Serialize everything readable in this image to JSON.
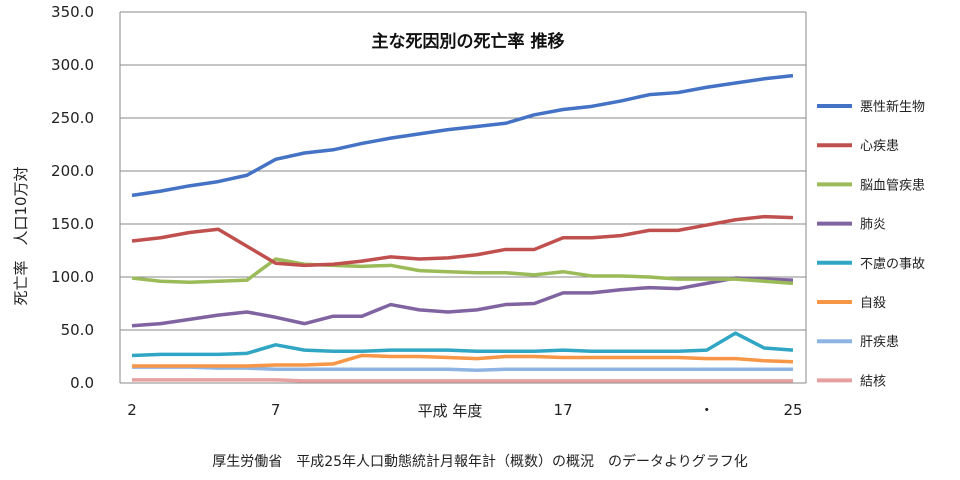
{
  "chart_data": {
    "type": "line",
    "title": "主な死因別の死亡率 推移",
    "xlabel": "平成 年度",
    "ylabel": "死亡率　人口10万対",
    "source_note": "厚生労働省　平成25年人口動態統計月報年計（概数）の概況　のデータよりグラフ化",
    "xlim": [
      2,
      25
    ],
    "ylim": [
      0,
      350
    ],
    "y_ticks": [
      "0.0",
      "50.0",
      "100.0",
      "150.0",
      "200.0",
      "250.0",
      "300.0",
      "350.0"
    ],
    "x_tick_labels": [
      {
        "x": 2,
        "label": "2"
      },
      {
        "x": 7,
        "label": "7"
      },
      {
        "x": 17,
        "label": "17"
      },
      {
        "x": 22,
        "label": "・"
      },
      {
        "x": 25,
        "label": "25"
      }
    ],
    "grid": "horizontal",
    "legend_position": "right",
    "x": [
      2,
      3,
      4,
      5,
      6,
      7,
      8,
      9,
      10,
      11,
      12,
      13,
      14,
      15,
      16,
      17,
      18,
      19,
      20,
      21,
      22,
      23,
      24,
      25
    ],
    "series": [
      {
        "name": "悪性新生物",
        "color": "#4472c4",
        "values": [
          177,
          181,
          186,
          190,
          196,
          211,
          217,
          220,
          226,
          231,
          235,
          239,
          242,
          245,
          253,
          258,
          261,
          266,
          272,
          274,
          279,
          283,
          287,
          290
        ]
      },
      {
        "name": "心疾患",
        "color": "#c0504d",
        "values": [
          134,
          137,
          142,
          145,
          129,
          113,
          111,
          112,
          115,
          119,
          117,
          118,
          121,
          126,
          126,
          137,
          137,
          139,
          144,
          144,
          149,
          154,
          157,
          156
        ]
      },
      {
        "name": "脳血管疾患",
        "color": "#9bbb59",
        "values": [
          99,
          96,
          95,
          96,
          97,
          117,
          112,
          111,
          110,
          111,
          106,
          105,
          104,
          104,
          102,
          105,
          101,
          101,
          100,
          98,
          98,
          98,
          96,
          94
        ]
      },
      {
        "name": "肺炎",
        "color": "#8064a2",
        "values": [
          54,
          56,
          60,
          64,
          67,
          62,
          56,
          63,
          63,
          74,
          69,
          67,
          69,
          74,
          75,
          85,
          85,
          88,
          90,
          89,
          94,
          99,
          98,
          97
        ]
      },
      {
        "name": "不慮の事故",
        "color": "#31a6c4",
        "values": [
          26,
          27,
          27,
          27,
          28,
          36,
          31,
          30,
          30,
          31,
          31,
          31,
          30,
          30,
          30,
          31,
          30,
          30,
          30,
          30,
          31,
          47,
          33,
          31
        ]
      },
      {
        "name": "自殺",
        "color": "#f79646",
        "values": [
          16,
          16,
          16,
          16,
          16,
          17,
          17,
          18,
          26,
          25,
          25,
          24,
          23,
          25,
          25,
          24,
          24,
          24,
          24,
          24,
          23,
          23,
          21,
          20
        ]
      },
      {
        "name": "肝疾患",
        "color": "#8eb4e3",
        "values": [
          15,
          15,
          15,
          14,
          14,
          13,
          13,
          13,
          13,
          13,
          13,
          13,
          12,
          13,
          13,
          13,
          13,
          13,
          13,
          13,
          13,
          13,
          13,
          13
        ]
      },
      {
        "name": "結核",
        "color": "#e6a0a0",
        "values": [
          3,
          3,
          3,
          3,
          3,
          3,
          2,
          2,
          2,
          2,
          2,
          2,
          2,
          2,
          2,
          2,
          2,
          2,
          2,
          2,
          2,
          2,
          2,
          2
        ]
      }
    ]
  }
}
